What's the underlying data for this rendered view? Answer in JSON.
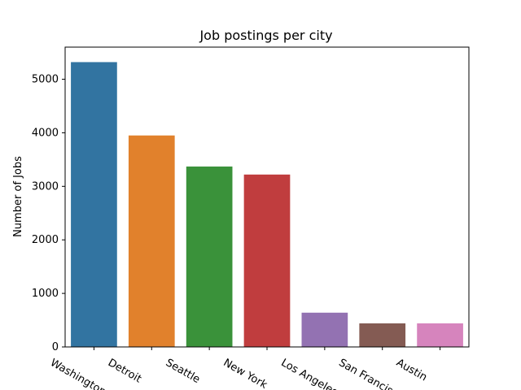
{
  "chart_data": {
    "type": "bar",
    "title": "Job postings per city",
    "xlabel": "",
    "ylabel": "Number of Jobs",
    "categories": [
      "Washington",
      "Detroit",
      "Seattle",
      "New York",
      "Los Angeles",
      "San Francisco",
      "Austin"
    ],
    "values": [
      5320,
      3950,
      3370,
      3220,
      640,
      440,
      440
    ],
    "colors": [
      "#3274a1",
      "#e1812c",
      "#3a923a",
      "#c03d3e",
      "#9372b2",
      "#845b53",
      "#d684bd"
    ],
    "yticks": [
      0,
      1000,
      2000,
      3000,
      4000,
      5000
    ],
    "ylim": [
      0,
      5600
    ],
    "grid": false,
    "legend": "none"
  }
}
